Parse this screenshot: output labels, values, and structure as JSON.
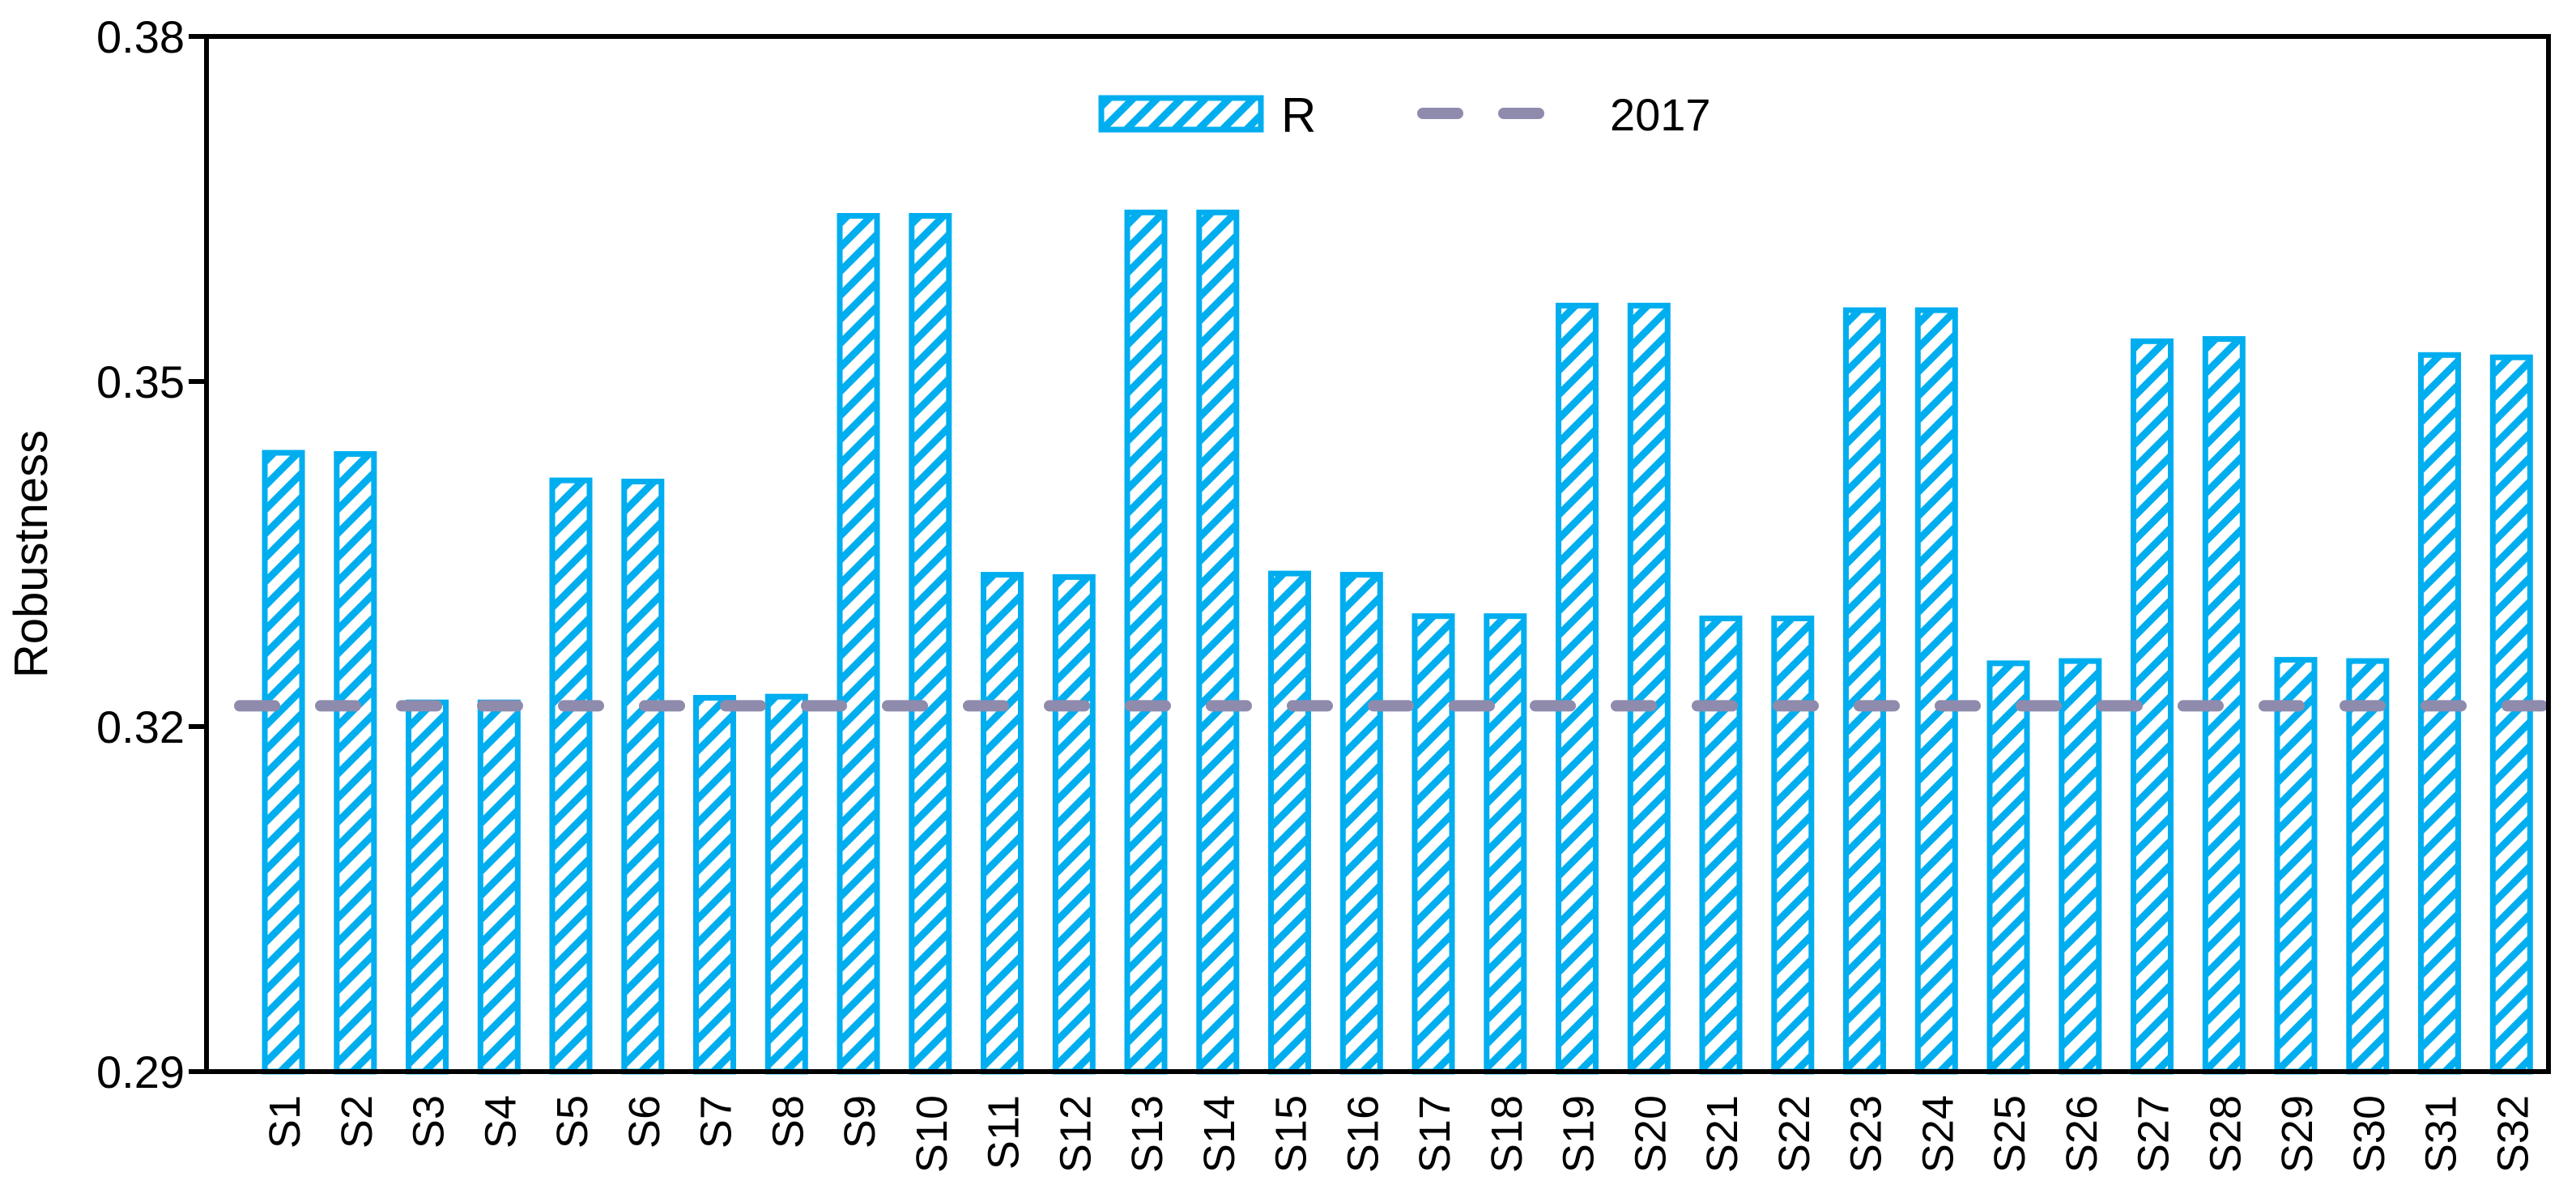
{
  "figure": {
    "background": "#ffffff"
  },
  "chart_data": {
    "type": "bar",
    "title": "",
    "xlabel": "",
    "ylabel": "Robustness",
    "ylim": [
      0.29,
      0.38
    ],
    "grid": false,
    "yticks": [
      {
        "value": 0.29,
        "label": "0.29"
      },
      {
        "value": 0.32,
        "label": "0.32"
      },
      {
        "value": 0.35,
        "label": "0.35"
      },
      {
        "value": 0.38,
        "label": "0.38"
      }
    ],
    "categories": [
      "S1",
      "S2",
      "S3",
      "S4",
      "S5",
      "S6",
      "S7",
      "S8",
      "S9",
      "S10",
      "S11",
      "S12",
      "S13",
      "S14",
      "S15",
      "S16",
      "S17",
      "S18",
      "S19",
      "S20",
      "S21",
      "S22",
      "S23",
      "S24",
      "S25",
      "S26",
      "S27",
      "S28",
      "S29",
      "S30",
      "S31",
      "S32"
    ],
    "series": [
      {
        "name": "R",
        "color": "#00AEEF",
        "hatch": "diagonal-forward",
        "values": [
          0.3438,
          0.3437,
          0.3221,
          0.3221,
          0.3414,
          0.3413,
          0.3225,
          0.3226,
          0.3644,
          0.3644,
          0.3332,
          0.333,
          0.3647,
          0.3647,
          0.3333,
          0.3332,
          0.3296,
          0.3296,
          0.3566,
          0.3566,
          0.3294,
          0.3294,
          0.3562,
          0.3562,
          0.3255,
          0.3257,
          0.3535,
          0.3537,
          0.3258,
          0.3257,
          0.3523,
          0.3521
        ]
      }
    ],
    "reference_line": {
      "name": "2017",
      "value": 0.3218,
      "color": "#8E8BAD",
      "style": "dashed"
    },
    "legend": {
      "position": "top-center",
      "entries": [
        {
          "label": "R",
          "swatch": "hatched-bar"
        },
        {
          "label": "2017",
          "swatch": "dashed-line"
        }
      ]
    }
  }
}
